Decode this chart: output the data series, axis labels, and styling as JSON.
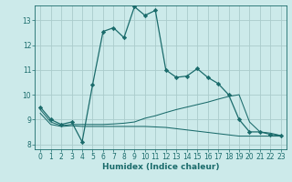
{
  "background_color": "#cceaea",
  "grid_color": "#aacccc",
  "line_color": "#1a6b6b",
  "xlabel": "Humidex (Indice chaleur)",
  "xlim": [
    -0.5,
    23.5
  ],
  "ylim": [
    7.8,
    13.6
  ],
  "yticks": [
    8,
    9,
    10,
    11,
    12,
    13
  ],
  "xticks": [
    0,
    1,
    2,
    3,
    4,
    5,
    6,
    7,
    8,
    9,
    10,
    11,
    12,
    13,
    14,
    15,
    16,
    17,
    18,
    19,
    20,
    21,
    22,
    23
  ],
  "line1_x": [
    0,
    1,
    2,
    3,
    4,
    5,
    6,
    7,
    8,
    9,
    10,
    11,
    12,
    13,
    14,
    15,
    16,
    17,
    18,
    19,
    20,
    21,
    22,
    23
  ],
  "line1_y": [
    9.5,
    9.0,
    8.8,
    8.9,
    8.1,
    10.4,
    12.55,
    12.7,
    12.3,
    13.55,
    13.2,
    13.4,
    11.0,
    10.7,
    10.75,
    11.05,
    10.7,
    10.45,
    10.0,
    9.0,
    8.5,
    8.5,
    8.4,
    8.35
  ],
  "line2_x": [
    0,
    1,
    2,
    3,
    4,
    5,
    6,
    7,
    8,
    9,
    10,
    11,
    12,
    13,
    14,
    15,
    16,
    17,
    18,
    19,
    20,
    21,
    22,
    23
  ],
  "line2_y": [
    9.4,
    8.9,
    8.75,
    8.8,
    8.8,
    8.8,
    8.8,
    8.82,
    8.85,
    8.9,
    9.05,
    9.15,
    9.28,
    9.4,
    9.5,
    9.6,
    9.7,
    9.82,
    9.93,
    10.0,
    8.9,
    8.5,
    8.45,
    8.35
  ],
  "line3_x": [
    0,
    1,
    2,
    3,
    4,
    5,
    6,
    7,
    8,
    9,
    10,
    11,
    12,
    13,
    14,
    15,
    16,
    17,
    18,
    19,
    20,
    21,
    22,
    23
  ],
  "line3_y": [
    9.25,
    8.8,
    8.72,
    8.75,
    8.72,
    8.72,
    8.72,
    8.72,
    8.72,
    8.72,
    8.72,
    8.7,
    8.68,
    8.63,
    8.58,
    8.53,
    8.48,
    8.43,
    8.38,
    8.33,
    8.33,
    8.33,
    8.33,
    8.33
  ],
  "tick_fontsize": 5.5,
  "xlabel_fontsize": 6.5,
  "xlabel_fontweight": "bold"
}
